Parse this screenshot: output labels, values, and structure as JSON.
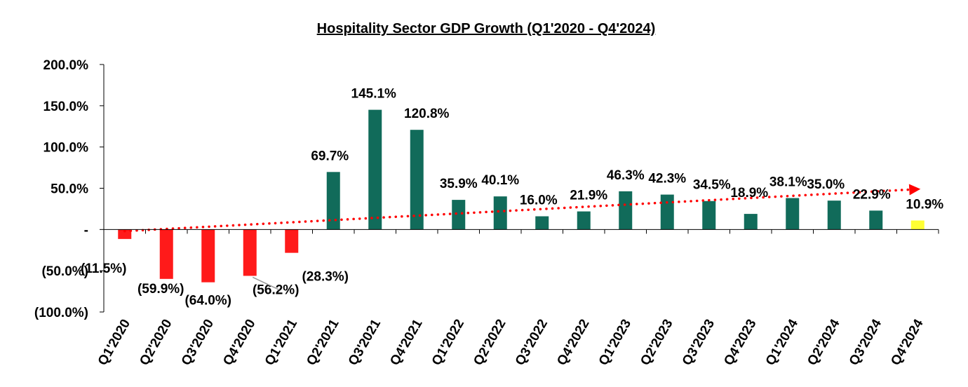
{
  "chart_data": {
    "type": "bar",
    "title": "Hospitality Sector GDP Growth (Q1'2020 - Q4'2024)",
    "xlabel": "",
    "ylabel": "",
    "ylim": [
      -100,
      200
    ],
    "yticks": [
      {
        "value": 200,
        "label": "200.0%"
      },
      {
        "value": 150,
        "label": "150.0%"
      },
      {
        "value": 100,
        "label": "100.0%"
      },
      {
        "value": 50,
        "label": "50.0%"
      },
      {
        "value": 0,
        "label": "-"
      },
      {
        "value": -50,
        "label": "(50.0%)"
      },
      {
        "value": -100,
        "label": "(100.0%)"
      }
    ],
    "categories": [
      "Q1'2020",
      "Q2'2020",
      "Q3'2020",
      "Q4'2020",
      "Q1'2021",
      "Q2'2021",
      "Q3'2021",
      "Q4'2021",
      "Q1'2022",
      "Q2'2022",
      "Q3'2022",
      "Q4'2022",
      "Q1'2023",
      "Q2'2023",
      "Q3'2023",
      "Q4'2023",
      "Q1'2024",
      "Q2'2024",
      "Q3'2024",
      "Q4'2024"
    ],
    "values": [
      -11.5,
      -59.9,
      -64.0,
      -56.2,
      -28.3,
      69.7,
      145.1,
      120.8,
      35.9,
      40.1,
      16.0,
      21.9,
      46.3,
      42.3,
      34.5,
      18.9,
      38.1,
      35.0,
      22.9,
      10.9
    ],
    "data_labels": [
      "(11.5%)",
      "(59.9%)",
      "(64.0%)",
      "(56.2%)",
      "(28.3%)",
      "69.7%",
      "145.1%",
      "120.8%",
      "35.9%",
      "40.1%",
      "16.0%",
      "21.9%",
      "46.3%",
      "42.3%",
      "34.5%",
      "18.9%",
      "38.1%",
      "35.0%",
      "22.9%",
      "10.9%"
    ],
    "trendline": {
      "style": "dotted",
      "color": "#ff0000",
      "start_value": -2,
      "end_value": 49,
      "arrow": true
    },
    "colors": {
      "negative": "#ff1a1a",
      "positive": "#116b5a",
      "latest": "#ffff33"
    },
    "grid": false,
    "legend": "none"
  }
}
